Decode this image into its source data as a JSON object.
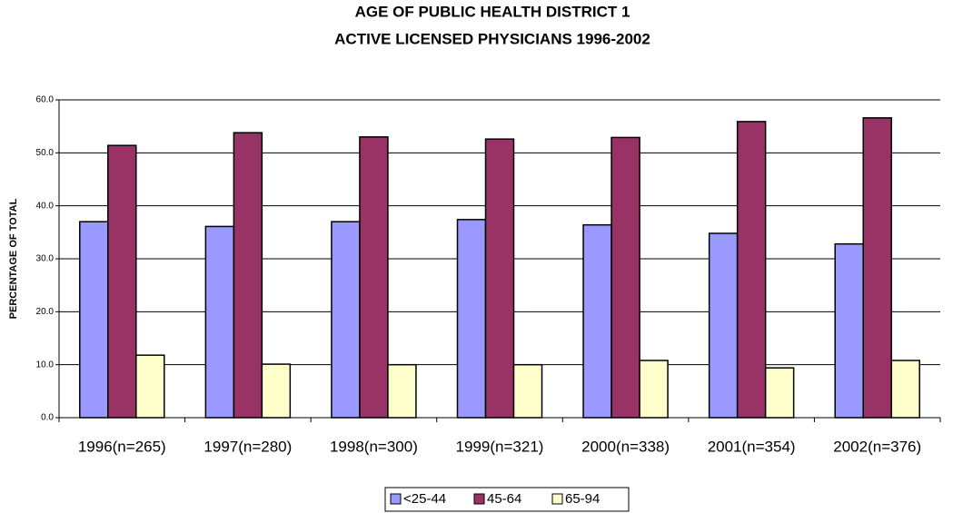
{
  "chart_data": {
    "type": "bar",
    "title": [
      "AGE OF PUBLIC HEALTH DISTRICT 1",
      "ACTIVE LICENSED PHYSICIANS 1996-2002"
    ],
    "y_label": "PERCENTAGE OF TOTAL",
    "categories": [
      "1996(n=265)",
      "1997(n=280)",
      "1998(n=300)",
      "1999(n=321)",
      "2000(n=338)",
      "2001(n=354)",
      "2002(n=376)"
    ],
    "series": [
      {
        "name": "<25-44",
        "color": "#9999ff",
        "values": [
          37.0,
          36.1,
          37.0,
          37.4,
          36.4,
          34.8,
          32.8
        ]
      },
      {
        "name": "45-64",
        "color": "#993366",
        "values": [
          51.4,
          53.8,
          53.0,
          52.6,
          52.9,
          55.9,
          56.6
        ]
      },
      {
        "name": "65-94",
        "color": "#ffffcc",
        "values": [
          11.8,
          10.1,
          10.0,
          10.0,
          10.8,
          9.4,
          10.8
        ]
      }
    ],
    "ylim": [
      0,
      60
    ],
    "yticks": [
      {
        "value": 0,
        "label": "0.0"
      },
      {
        "value": 10,
        "label": "10.0"
      },
      {
        "value": 20,
        "label": "20.0"
      },
      {
        "value": 30,
        "label": "30.0"
      },
      {
        "value": 40,
        "label": "40.0"
      },
      {
        "value": 50,
        "label": "50.0"
      },
      {
        "value": 60,
        "label": "60.0"
      }
    ],
    "grid": true,
    "legend": "bottom"
  }
}
